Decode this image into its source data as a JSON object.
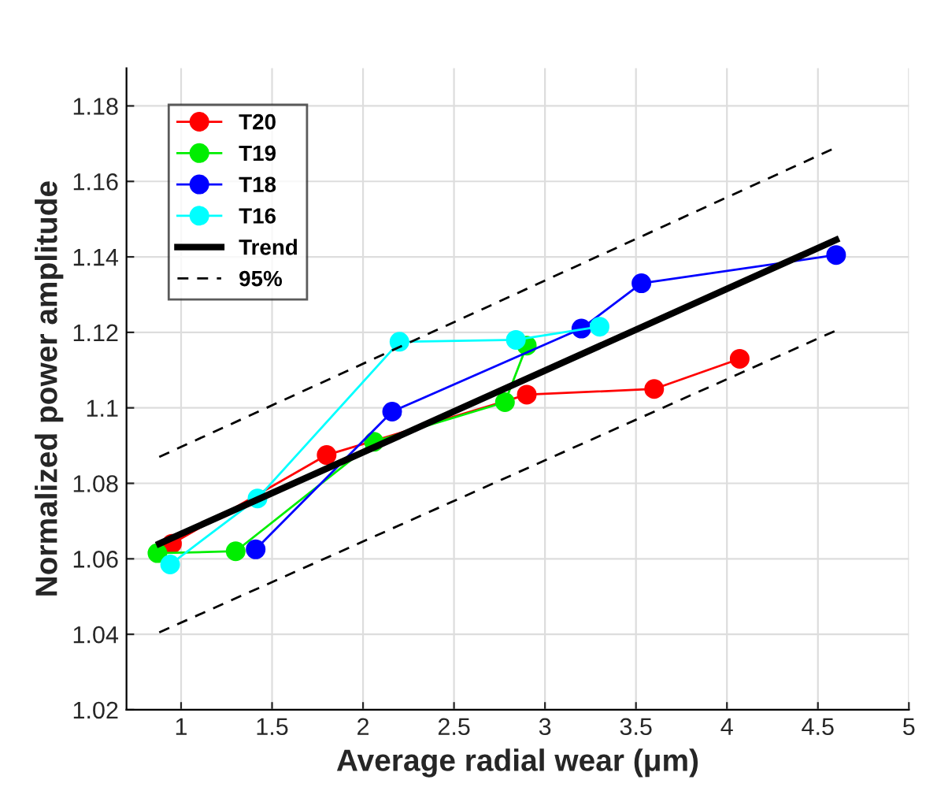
{
  "chart_data": {
    "type": "line",
    "xlabel": "Average radial wear (μm)",
    "ylabel": "Normalized power amplitude",
    "xlim": [
      0.7,
      5
    ],
    "ylim": [
      1.02,
      1.19
    ],
    "xticks": [
      1,
      1.5,
      2,
      2.5,
      3,
      3.5,
      4,
      4.5,
      5
    ],
    "yticks": [
      1.02,
      1.04,
      1.06,
      1.08,
      1.1,
      1.12,
      1.14,
      1.16,
      1.18
    ],
    "grid": true,
    "legend": "top left",
    "marker": "circle",
    "line_style": "solid",
    "series": [
      {
        "name": "T20",
        "color": "#ff0000",
        "x": [
          0.95,
          1.8,
          2.9,
          3.6,
          4.07
        ],
        "values": [
          1.064,
          1.0875,
          1.1035,
          1.105,
          1.113
        ]
      },
      {
        "name": "T19",
        "color": "#00ee00",
        "x": [
          0.87,
          1.3,
          2.06,
          2.78,
          2.9
        ],
        "values": [
          1.0615,
          1.062,
          1.091,
          1.1015,
          1.1165
        ]
      },
      {
        "name": "T18",
        "color": "#0000ff",
        "x": [
          1.41,
          2.16,
          3.2,
          3.53,
          4.6
        ],
        "values": [
          1.0625,
          1.099,
          1.121,
          1.133,
          1.1405
        ]
      },
      {
        "name": "T16",
        "color": "#00ffff",
        "x": [
          0.94,
          1.42,
          2.2,
          2.84,
          3.3
        ],
        "values": [
          1.0585,
          1.076,
          1.1175,
          1.118,
          1.1215
        ]
      },
      {
        "name": "Trend",
        "color": "#000000",
        "x": [
          0.88,
          4.6
        ],
        "values": [
          1.064,
          1.1445
        ],
        "marker": "none"
      },
      {
        "name": "95%",
        "color": "#000000",
        "x": [
          0.88,
          4.6
        ],
        "values": [
          1.087,
          1.169
        ],
        "marker": "none",
        "line_style": "dashed"
      },
      {
        "color": "#000000",
        "x": [
          0.88,
          4.6
        ],
        "values": [
          1.0405,
          1.1205
        ],
        "marker": "none",
        "line_style": "dashed"
      }
    ]
  }
}
